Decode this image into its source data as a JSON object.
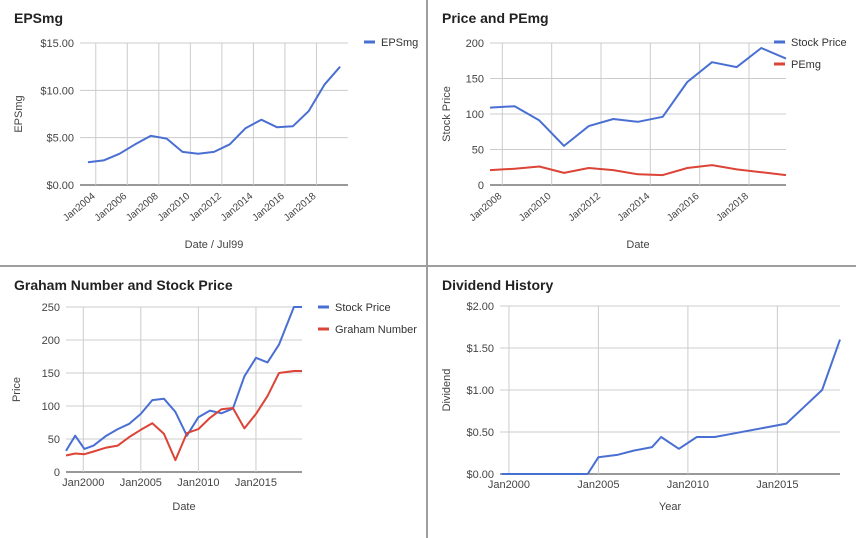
{
  "chart_data": [
    {
      "type": "line",
      "title": "EPSmg",
      "xlabel": "Date / Jul99",
      "ylabel": "EPSmg",
      "ylim": [
        0,
        15
      ],
      "y_ticks": [
        "$0.00",
        "$5.00",
        "$10.00",
        "$15.00"
      ],
      "y_tick_values": [
        0,
        5,
        10,
        15
      ],
      "x_ticks": [
        "Jan2004",
        "Jan2006",
        "Jan2008",
        "Jan2010",
        "Jan2012",
        "Jan2014",
        "Jan2016",
        "Jan2018"
      ],
      "x_tick_values": [
        2004,
        2006,
        2008,
        2010,
        2012,
        2014,
        2016,
        2018
      ],
      "xlim": [
        2003,
        2020
      ],
      "legend_position": "top-right",
      "grid": true,
      "series": [
        {
          "name": "EPSmg",
          "color": "#4a6fd3",
          "x": [
            2003.5,
            2004.5,
            2005.5,
            2006.5,
            2007.5,
            2008.5,
            2009.5,
            2010.5,
            2011.5,
            2012.5,
            2013.5,
            2014.5,
            2015.5,
            2016.5,
            2017.5,
            2018.5,
            2019.5
          ],
          "values": [
            2.4,
            2.6,
            3.3,
            4.3,
            5.2,
            4.9,
            3.5,
            3.3,
            3.5,
            4.3,
            6.0,
            6.9,
            6.1,
            6.2,
            7.8,
            10.6,
            12.5
          ]
        }
      ]
    },
    {
      "type": "line",
      "title": "Price and PEmg",
      "xlabel": "Date",
      "ylabel": "Stock Price",
      "ylim": [
        0,
        200
      ],
      "y_ticks": [
        "0",
        "50",
        "100",
        "150",
        "200"
      ],
      "y_tick_values": [
        0,
        50,
        100,
        150,
        200
      ],
      "x_ticks": [
        "Jan2008",
        "Jan2010",
        "Jan2012",
        "Jan2014",
        "Jan2016",
        "Jan2018"
      ],
      "x_tick_values": [
        2008,
        2010,
        2012,
        2014,
        2016,
        2018
      ],
      "xlim": [
        2007.5,
        2019.5
      ],
      "legend_position": "top-right",
      "grid": true,
      "series": [
        {
          "name": "Stock Price",
          "color": "#4a6fd3",
          "x": [
            2007.5,
            2008.5,
            2009.5,
            2010.5,
            2011.5,
            2012.5,
            2013.5,
            2014.5,
            2015.5,
            2016.5,
            2017.5,
            2018.5,
            2019.5
          ],
          "values": [
            109,
            111,
            91,
            55,
            83,
            93,
            89,
            96,
            145,
            173,
            166,
            193,
            178
          ]
        },
        {
          "name": "PEmg",
          "color": "#db4437",
          "x": [
            2007.5,
            2008.5,
            2009.5,
            2010.5,
            2011.5,
            2012.5,
            2013.5,
            2014.5,
            2015.5,
            2016.5,
            2017.5,
            2018.5,
            2019.5
          ],
          "values": [
            21,
            23,
            26,
            17,
            24,
            21,
            15,
            14,
            24,
            28,
            22,
            18,
            14
          ]
        }
      ]
    },
    {
      "type": "line",
      "title": "Graham Number and Stock Price",
      "xlabel": "Date",
      "ylabel": "Price",
      "ylim": [
        0,
        250
      ],
      "y_ticks": [
        "0",
        "50",
        "100",
        "150",
        "200",
        "250"
      ],
      "y_tick_values": [
        0,
        50,
        100,
        150,
        200,
        250
      ],
      "x_ticks": [
        "Jan2000",
        "Jan2005",
        "Jan2010",
        "Jan2015"
      ],
      "x_tick_values": [
        2000,
        2005,
        2010,
        2015
      ],
      "xlim": [
        1998.5,
        2019
      ],
      "legend_position": "top-right",
      "grid": true,
      "series": [
        {
          "name": "Stock Price",
          "color": "#4a6fd3",
          "x": [
            1998.5,
            1999.3,
            2000.1,
            2000.9,
            2002,
            2003,
            2004,
            2005,
            2006,
            2007,
            2008,
            2009,
            2010,
            2011,
            2012,
            2013,
            2014,
            2015,
            2016,
            2017,
            2018.3,
            2019
          ],
          "values": [
            32,
            55,
            35,
            40,
            55,
            65,
            73,
            88,
            109,
            111,
            91,
            55,
            83,
            93,
            89,
            96,
            145,
            173,
            166,
            193,
            250,
            250
          ]
        },
        {
          "name": "Graham Number",
          "color": "#db4437",
          "x": [
            1998.5,
            1999.3,
            2000.1,
            2000.9,
            2002,
            2003,
            2004,
            2005,
            2006,
            2007,
            2008,
            2009,
            2010,
            2011,
            2012,
            2013,
            2014,
            2015,
            2016,
            2017,
            2018.3,
            2019
          ],
          "values": [
            25,
            28,
            27,
            31,
            37,
            40,
            53,
            64,
            74,
            58,
            18,
            59,
            65,
            82,
            95,
            97,
            66,
            88,
            115,
            150,
            153,
            153
          ]
        }
      ]
    },
    {
      "type": "line",
      "title": "Dividend History",
      "xlabel": "Year",
      "ylabel": "Dividend",
      "ylim": [
        0,
        2
      ],
      "y_ticks": [
        "$0.00",
        "$0.50",
        "$1.00",
        "$1.50",
        "$2.00"
      ],
      "y_tick_values": [
        0,
        0.5,
        1,
        1.5,
        2
      ],
      "x_ticks": [
        "Jan2000",
        "Jan2005",
        "Jan2010",
        "Jan2015"
      ],
      "x_tick_values": [
        2000,
        2005,
        2010,
        2015
      ],
      "xlim": [
        1999.5,
        2018.5
      ],
      "grid": true,
      "series": [
        {
          "name": "",
          "color": "#4a6fd3",
          "x": [
            1999.6,
            2001,
            2002,
            2003,
            2004.4,
            2005,
            2006.1,
            2007,
            2008,
            2008.5,
            2009.5,
            2010.5,
            2011.5,
            2012.5,
            2014.5,
            2015.5,
            2016.5,
            2017.5,
            2018.5
          ],
          "values": [
            0,
            0,
            0,
            0,
            0,
            0.2,
            0.23,
            0.28,
            0.32,
            0.44,
            0.3,
            0.44,
            0.44,
            0.48,
            0.56,
            0.6,
            0.8,
            1.0,
            1.6
          ]
        }
      ]
    }
  ]
}
